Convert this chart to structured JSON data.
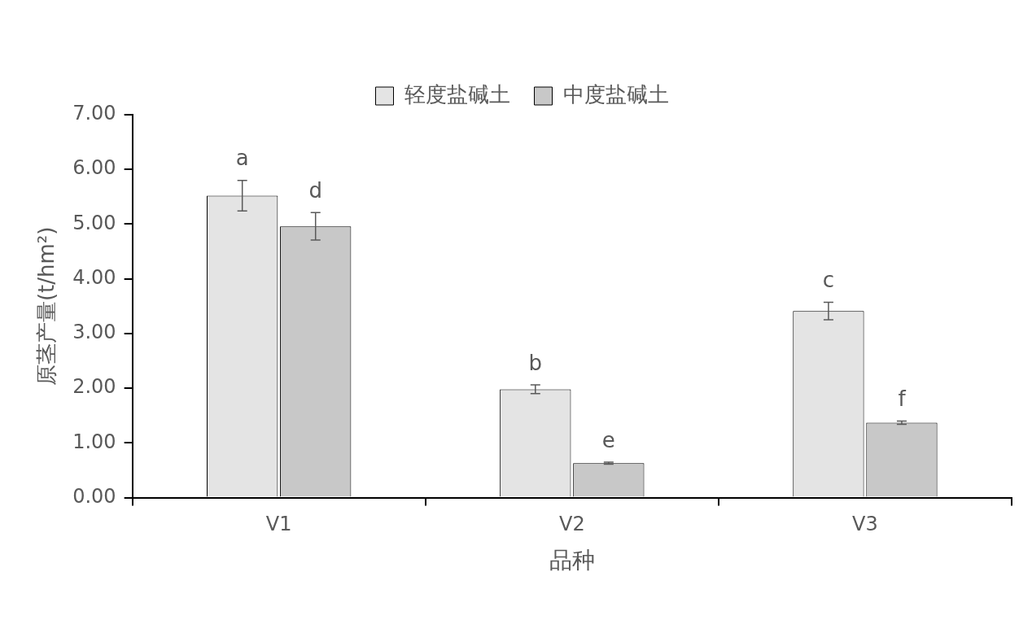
{
  "chart_data": {
    "type": "bar",
    "xlabel": "品种",
    "ylabel": "原茎产量(t/hm²)",
    "categories": [
      "V1",
      "V2",
      "V3"
    ],
    "series": [
      {
        "name": "轻度盐碱土",
        "color": "#e4e4e4",
        "values": [
          5.52,
          1.98,
          3.41
        ],
        "errors": [
          0.28,
          0.08,
          0.16
        ]
      },
      {
        "name": "中度盐碱土",
        "color": "#c8c8c8",
        "values": [
          4.96,
          0.63,
          1.37
        ],
        "errors": [
          0.25,
          0.02,
          0.03
        ]
      }
    ],
    "ylim": [
      0,
      7
    ],
    "yticks": [
      {
        "value": 0,
        "label": "0.00"
      },
      {
        "value": 1,
        "label": "1.00"
      },
      {
        "value": 2,
        "label": "2.00"
      },
      {
        "value": 3,
        "label": "3.00"
      },
      {
        "value": 4,
        "label": "4.00"
      },
      {
        "value": 5,
        "label": "5.00"
      },
      {
        "value": 6,
        "label": "6.00"
      },
      {
        "value": 7,
        "label": "7.00"
      }
    ],
    "annotations": [
      "a",
      "d",
      "b",
      "e",
      "c",
      "f"
    ],
    "grid": false,
    "legend": "top"
  }
}
